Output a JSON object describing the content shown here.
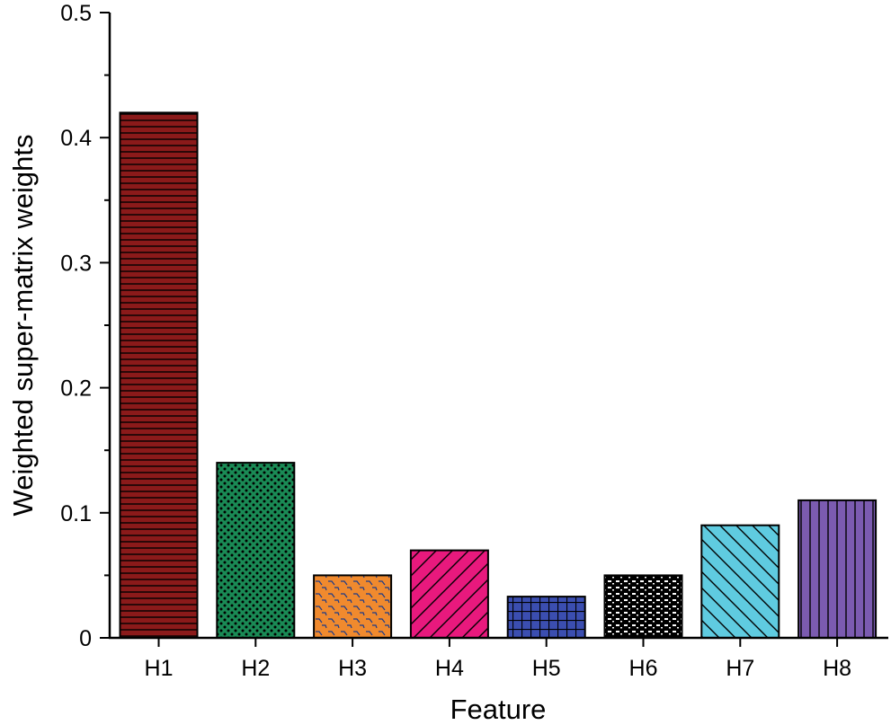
{
  "chart_data": {
    "type": "bar",
    "title": "",
    "xlabel": "Feature",
    "ylabel": "Weighted super-matrix weights",
    "categories": [
      "H1",
      "H2",
      "H3",
      "H4",
      "H5",
      "H6",
      "H7",
      "H8"
    ],
    "values": [
      0.42,
      0.14,
      0.05,
      0.07,
      0.033,
      0.05,
      0.09,
      0.11
    ],
    "ylim": [
      0,
      0.5
    ],
    "yticks": [
      0,
      0.1,
      0.2,
      0.3,
      0.4,
      0.5
    ],
    "ytick_labels": [
      "0",
      "0.1",
      "0.2",
      "0.3",
      "0.4",
      "0.5"
    ],
    "grid": false,
    "bar_styles": [
      {
        "color": "#8b1a1a",
        "pattern": "horizontal-lines",
        "line_color": "#000000"
      },
      {
        "color": "#1a8a55",
        "pattern": "dots",
        "line_color": "#000000"
      },
      {
        "color": "#f08a2e",
        "pattern": "weave",
        "line_color": "#1b3a8a"
      },
      {
        "color": "#e8197d",
        "pattern": "diagonal-up",
        "line_color": "#000000"
      },
      {
        "color": "#3b4eb0",
        "pattern": "grid",
        "line_color": "#000000"
      },
      {
        "color": "#ffffff",
        "pattern": "dashes",
        "line_color": "#000000",
        "background": "#000000"
      },
      {
        "color": "#5fcbe0",
        "pattern": "diagonal-down",
        "line_color": "#000000"
      },
      {
        "color": "#7b5bb0",
        "pattern": "vertical-lines",
        "line_color": "#000000"
      }
    ]
  }
}
